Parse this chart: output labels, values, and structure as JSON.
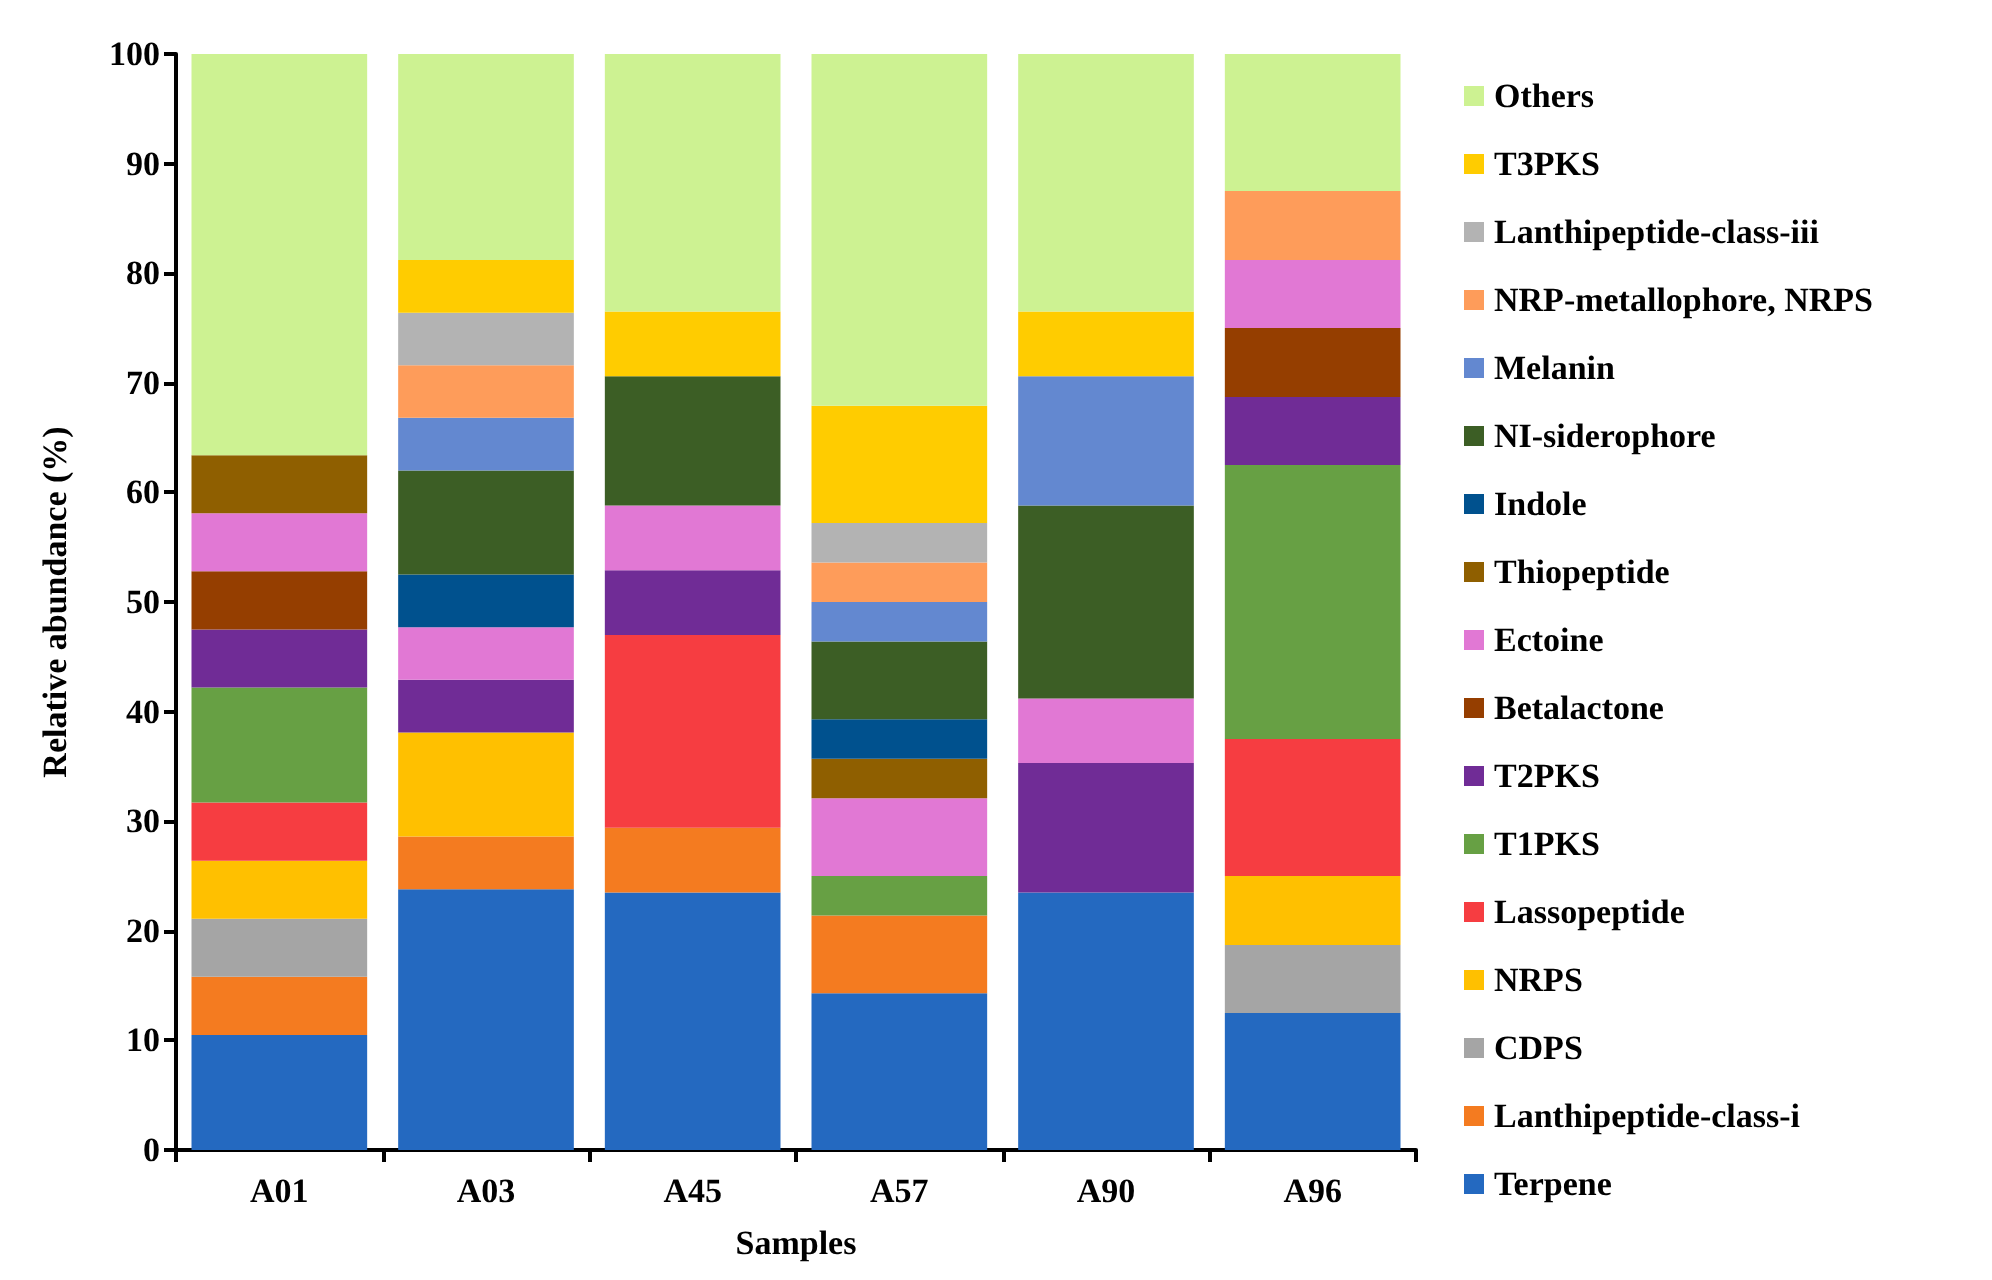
{
  "chart_data": {
    "type": "bar",
    "stacked": true,
    "xlabel": "Samples",
    "ylabel": "Relative abundance (%)",
    "categories": [
      "A01",
      "A03",
      "A45",
      "A57",
      "A90",
      "A96"
    ],
    "ylim": [
      0,
      100
    ],
    "yticks": [
      0,
      10,
      20,
      30,
      40,
      50,
      60,
      70,
      80,
      90,
      100
    ],
    "grid": false,
    "legend": "right",
    "series": [
      {
        "name": "Terpene",
        "color": "#2469c0",
        "values": [
          10.5,
          23.8,
          23.5,
          14.3,
          23.5,
          12.5
        ]
      },
      {
        "name": "Lanthipeptide-class-i",
        "color": "#f47b20",
        "values": [
          5.3,
          4.8,
          5.9,
          7.1,
          null,
          null
        ]
      },
      {
        "name": "CDPS",
        "color": "#a5a5a5",
        "values": [
          5.3,
          null,
          null,
          null,
          null,
          6.2
        ]
      },
      {
        "name": "NRPS",
        "color": "#ffc000",
        "values": [
          5.3,
          9.5,
          null,
          null,
          null,
          6.3
        ]
      },
      {
        "name": "Lassopeptide",
        "color": "#f63d41",
        "values": [
          5.3,
          null,
          17.6,
          null,
          null,
          12.5
        ]
      },
      {
        "name": "T1PKS",
        "color": "#67a044",
        "values": [
          10.5,
          null,
          null,
          3.6,
          null,
          25
        ]
      },
      {
        "name": "T2PKS",
        "color": "#702c96",
        "values": [
          5.3,
          4.8,
          5.9,
          null,
          11.8,
          6.2
        ]
      },
      {
        "name": "Betalactone",
        "color": "#953e00",
        "values": [
          5.3,
          null,
          null,
          null,
          null,
          6.3
        ]
      },
      {
        "name": "Ectoine",
        "color": "#e178d4",
        "values": [
          5.3,
          4.8,
          5.9,
          7.1,
          5.9,
          6.2
        ]
      },
      {
        "name": "Thiopeptide",
        "color": "#8f5f00",
        "values": [
          5.3,
          null,
          null,
          3.6,
          null,
          null
        ]
      },
      {
        "name": "Indole",
        "color": "#00518e",
        "values": [
          null,
          4.8,
          null,
          3.6,
          null,
          null
        ]
      },
      {
        "name": "NI-siderophore",
        "color": "#3c5e25",
        "values": [
          null,
          9.5,
          11.8,
          7.1,
          17.6,
          null
        ]
      },
      {
        "name": "Melanin",
        "color": "#6388d0",
        "values": [
          null,
          4.8,
          null,
          3.6,
          11.8,
          null
        ]
      },
      {
        "name": "NRP-metallophore, NRPS",
        "color": "#fe9c5a",
        "values": [
          null,
          4.8,
          null,
          3.6,
          null,
          6.3
        ]
      },
      {
        "name": "Lanthipeptide-class-iii",
        "color": "#b3b3b3",
        "values": [
          null,
          4.8,
          null,
          3.6,
          null,
          null
        ]
      },
      {
        "name": "T3PKS",
        "color": "#ffcc00",
        "values": [
          null,
          4.8,
          5.9,
          10.7,
          5.9,
          null
        ]
      },
      {
        "name": "Others",
        "color": "#cdf292",
        "values": [
          36.6,
          18.8,
          23.5,
          32.1,
          23.5,
          12.5
        ]
      }
    ]
  }
}
